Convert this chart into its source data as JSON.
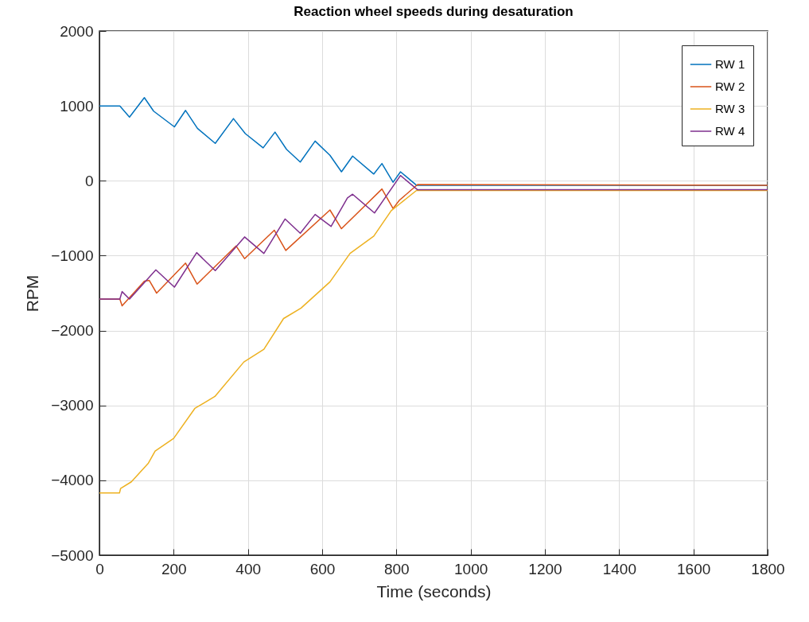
{
  "chart_data": {
    "type": "line",
    "title": "Reaction wheel speeds during desaturation",
    "xlabel": "Time (seconds)",
    "ylabel": "RPM",
    "xlim": [
      0,
      1800
    ],
    "xticks": [
      0,
      200,
      400,
      600,
      800,
      1000,
      1200,
      1400,
      1600,
      1800
    ],
    "ylim": [
      -5000,
      2000
    ],
    "yticks": [
      -5000,
      -4000,
      -3000,
      -2000,
      -1000,
      0,
      1000,
      2000
    ],
    "grid": true,
    "legend": "top right",
    "marker": "none",
    "line_style": "solid",
    "series": [
      {
        "name": "RW 1",
        "color": "#0072bd",
        "x": [
          0,
          55,
          81,
          121,
          146,
          202,
          232,
          264,
          312,
          361,
          393,
          441,
          473,
          504,
          541,
          581,
          621,
          652,
          682,
          739,
          761,
          791,
          811,
          854,
          1800
        ],
        "values": [
          1000,
          1000,
          850,
          1110,
          930,
          720,
          940,
          700,
          500,
          830,
          630,
          440,
          650,
          420,
          250,
          530,
          340,
          120,
          330,
          90,
          230,
          -20,
          120,
          -60,
          -60
        ]
      },
      {
        "name": "RW 2",
        "color": "#d95319",
        "x": [
          0,
          55,
          61,
          121,
          134,
          154,
          232,
          263,
          368,
          391,
          471,
          502,
          621,
          652,
          761,
          791,
          808,
          857,
          1800
        ],
        "values": [
          -1580,
          -1580,
          -1670,
          -1340,
          -1330,
          -1500,
          -1100,
          -1380,
          -870,
          -1040,
          -660,
          -930,
          -390,
          -640,
          -110,
          -370,
          -260,
          -50,
          -60
        ]
      },
      {
        "name": "RW 3",
        "color": "#edb120",
        "x": [
          0,
          54,
          57,
          86,
          132,
          150,
          200,
          257,
          311,
          389,
          443,
          496,
          543,
          621,
          675,
          739,
          786,
          811,
          854,
          1800
        ],
        "values": [
          -4170,
          -4170,
          -4110,
          -4020,
          -3770,
          -3610,
          -3440,
          -3040,
          -2880,
          -2420,
          -2250,
          -1840,
          -1700,
          -1350,
          -970,
          -740,
          -400,
          -300,
          -130,
          -130
        ]
      },
      {
        "name": "RW 4",
        "color": "#7e2f8e",
        "x": [
          0,
          55,
          61,
          81,
          152,
          202,
          262,
          312,
          391,
          443,
          500,
          541,
          581,
          624,
          668,
          682,
          741,
          811,
          857,
          1800
        ],
        "values": [
          -1580,
          -1580,
          -1480,
          -1580,
          -1190,
          -1420,
          -960,
          -1200,
          -750,
          -970,
          -510,
          -700,
          -450,
          -610,
          -230,
          -180,
          -430,
          70,
          -120,
          -120
        ]
      }
    ]
  }
}
